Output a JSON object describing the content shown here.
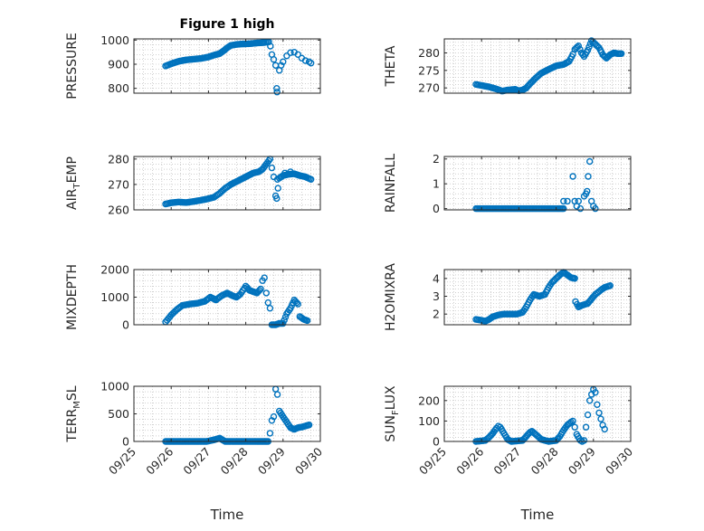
{
  "figure": {
    "title": "Figure 1 high",
    "x_label": "Time"
  },
  "colors": {
    "marker": "#0072bd",
    "axis": "#262626",
    "grid": "#b3b3b3"
  },
  "chart_data": [
    {
      "type": "scatter",
      "ylabel": "PRESSURE",
      "xlim": [
        "09/25",
        "09/30"
      ],
      "ylim": [
        780,
        1005
      ],
      "yticks": [
        800,
        900,
        1000
      ],
      "xticks": [
        "09/25",
        "09/26",
        "09/27",
        "09/28",
        "09/29",
        "09/30"
      ],
      "curve": [
        [
          25.85,
          893
        ],
        [
          26.0,
          902
        ],
        [
          26.2,
          912
        ],
        [
          26.4,
          918
        ],
        [
          26.6,
          921
        ],
        [
          26.8,
          924
        ],
        [
          27.0,
          930
        ],
        [
          27.15,
          938
        ],
        [
          27.3,
          944
        ],
        [
          27.4,
          955
        ],
        [
          27.5,
          968
        ],
        [
          27.6,
          978
        ],
        [
          27.75,
          982
        ],
        [
          27.9,
          984
        ],
        [
          28.1,
          985
        ],
        [
          28.3,
          988
        ],
        [
          28.5,
          990
        ],
        [
          28.62,
          993
        ]
      ],
      "extra": [
        [
          28.66,
          975
        ],
        [
          28.7,
          940
        ],
        [
          28.75,
          920
        ],
        [
          28.8,
          895
        ],
        [
          28.83,
          800
        ],
        [
          28.84,
          785
        ],
        [
          28.9,
          875
        ],
        [
          28.95,
          895
        ],
        [
          29.0,
          910
        ],
        [
          29.1,
          935
        ],
        [
          29.2,
          948
        ],
        [
          29.3,
          950
        ],
        [
          29.4,
          940
        ],
        [
          29.5,
          925
        ],
        [
          29.6,
          915
        ],
        [
          29.7,
          910
        ],
        [
          29.75,
          905
        ]
      ]
    },
    {
      "type": "scatter",
      "ylabel": "THETA",
      "xlim": [
        "09/25",
        "09/30"
      ],
      "ylim": [
        268.5,
        284
      ],
      "yticks": [
        270,
        275,
        280
      ],
      "xticks": [
        "09/25",
        "09/26",
        "09/27",
        "09/28",
        "09/29",
        "09/30"
      ],
      "curve": [
        [
          25.85,
          271
        ],
        [
          26.0,
          270.7
        ],
        [
          26.2,
          270.3
        ],
        [
          26.4,
          269.7
        ],
        [
          26.55,
          269.1
        ],
        [
          26.7,
          269.4
        ],
        [
          26.9,
          269.6
        ],
        [
          27.0,
          269.2
        ],
        [
          27.1,
          269.4
        ],
        [
          27.2,
          270.0
        ],
        [
          27.3,
          271.2
        ],
        [
          27.45,
          272.8
        ],
        [
          27.6,
          274.2
        ],
        [
          27.8,
          275.3
        ],
        [
          28.0,
          276.3
        ],
        [
          28.2,
          276.7
        ],
        [
          28.35,
          277.6
        ],
        [
          28.45,
          279.6
        ],
        [
          28.5,
          281.0
        ],
        [
          28.6,
          282.0
        ],
        [
          28.68,
          280.0
        ],
        [
          28.75,
          279.0
        ],
        [
          28.85,
          280.8
        ],
        [
          28.95,
          283.5
        ],
        [
          29.05,
          282.5
        ],
        [
          29.15,
          281.5
        ],
        [
          29.25,
          279.5
        ],
        [
          29.35,
          278.5
        ],
        [
          29.45,
          279.5
        ],
        [
          29.55,
          280.0
        ],
        [
          29.65,
          279.8
        ],
        [
          29.75,
          279.8
        ]
      ],
      "extra": []
    },
    {
      "type": "scatter",
      "ylabel": "AIR_TEMP",
      "xlim": [
        "09/25",
        "09/30"
      ],
      "ylim": [
        260,
        281
      ],
      "yticks": [
        260,
        270,
        280
      ],
      "xticks": [
        "09/25",
        "09/26",
        "09/27",
        "09/28",
        "09/29",
        "09/30"
      ],
      "curve": [
        [
          25.85,
          262.3
        ],
        [
          26.0,
          262.8
        ],
        [
          26.2,
          263.1
        ],
        [
          26.4,
          262.9
        ],
        [
          26.6,
          263.3
        ],
        [
          26.8,
          263.8
        ],
        [
          27.0,
          264.4
        ],
        [
          27.15,
          265.0
        ],
        [
          27.3,
          266.5
        ],
        [
          27.45,
          268.5
        ],
        [
          27.6,
          270.0
        ],
        [
          27.8,
          271.5
        ],
        [
          28.0,
          273.0
        ],
        [
          28.2,
          274.5
        ],
        [
          28.35,
          275.0
        ],
        [
          28.45,
          276.0
        ],
        [
          28.55,
          278.0
        ],
        [
          28.65,
          280.0
        ],
        [
          28.7,
          276.5
        ],
        [
          28.75,
          273.0
        ],
        [
          28.8,
          265.5
        ],
        [
          28.83,
          264.5
        ],
        [
          28.9,
          272.5
        ],
        [
          29.0,
          273.5
        ],
        [
          29.15,
          274.0
        ],
        [
          29.3,
          274.2
        ],
        [
          29.45,
          273.5
        ],
        [
          29.6,
          273.0
        ],
        [
          29.75,
          272.0
        ]
      ],
      "extra": [
        [
          28.85,
          272.0
        ],
        [
          28.95,
          273.0
        ],
        [
          29.05,
          274.5
        ],
        [
          29.2,
          275.0
        ]
      ]
    },
    {
      "type": "scatter",
      "ylabel": "RAINFALL",
      "xlim": [
        "09/25",
        "09/30"
      ],
      "ylim": [
        -0.05,
        2.1
      ],
      "yticks": [
        0,
        1,
        2
      ],
      "xticks": [
        "09/25",
        "09/26",
        "09/27",
        "09/28",
        "09/29",
        "09/30"
      ],
      "curve": [
        [
          25.85,
          0
        ],
        [
          26.4,
          0
        ],
        [
          26.95,
          0
        ],
        [
          27.5,
          0
        ],
        [
          28.0,
          0
        ],
        [
          28.2,
          0
        ]
      ],
      "extra": [
        [
          28.2,
          0.3
        ],
        [
          28.3,
          0.3
        ],
        [
          28.45,
          1.3
        ],
        [
          28.5,
          0.3
        ],
        [
          28.55,
          0.1
        ],
        [
          28.6,
          0.3
        ],
        [
          28.65,
          0
        ],
        [
          28.75,
          0.5
        ],
        [
          28.8,
          0.6
        ],
        [
          28.83,
          0.7
        ],
        [
          28.86,
          1.3
        ],
        [
          28.9,
          1.9
        ],
        [
          28.95,
          0.3
        ],
        [
          29.0,
          0.1
        ],
        [
          29.05,
          0
        ]
      ]
    },
    {
      "type": "scatter",
      "ylabel": "MIXDEPTH",
      "xlim": [
        "09/25",
        "09/30"
      ],
      "ylim": [
        0,
        2000
      ],
      "yticks": [
        0,
        1000,
        2000
      ],
      "xticks": [
        "09/25",
        "09/26",
        "09/27",
        "09/28",
        "09/29",
        "09/30"
      ],
      "curve": [
        [
          25.85,
          100
        ],
        [
          26.0,
          350
        ],
        [
          26.15,
          550
        ],
        [
          26.3,
          700
        ],
        [
          26.5,
          750
        ],
        [
          26.7,
          780
        ],
        [
          26.9,
          850
        ],
        [
          27.05,
          1000
        ],
        [
          27.2,
          900
        ],
        [
          27.35,
          1050
        ],
        [
          27.5,
          1150
        ],
        [
          27.65,
          1050
        ],
        [
          27.75,
          1000
        ],
        [
          27.85,
          1100
        ],
        [
          28.0,
          1400
        ],
        [
          28.1,
          1250
        ],
        [
          28.2,
          1200
        ],
        [
          28.3,
          1150
        ],
        [
          28.4,
          1300
        ],
        [
          28.45,
          1600
        ],
        [
          28.5,
          1700
        ],
        [
          28.55,
          1150
        ],
        [
          28.6,
          800
        ],
        [
          28.65,
          600
        ],
        [
          28.7,
          0
        ],
        [
          28.8,
          0
        ],
        [
          28.9,
          50
        ],
        [
          29.0,
          50
        ],
        [
          29.1,
          400
        ],
        [
          29.2,
          600
        ],
        [
          29.3,
          900
        ],
        [
          29.4,
          750
        ],
        [
          29.45,
          300
        ],
        [
          29.55,
          200
        ],
        [
          29.65,
          150
        ]
      ],
      "extra": []
    },
    {
      "type": "scatter",
      "ylabel": "H2OMIXRA",
      "xlim": [
        "09/25",
        "09/30"
      ],
      "ylim": [
        1.4,
        4.5
      ],
      "yticks": [
        2,
        3,
        4
      ],
      "xticks": [
        "09/25",
        "09/26",
        "09/27",
        "09/28",
        "09/29",
        "09/30"
      ],
      "curve": [
        [
          25.85,
          1.7
        ],
        [
          26.0,
          1.65
        ],
        [
          26.1,
          1.6
        ],
        [
          26.2,
          1.7
        ],
        [
          26.3,
          1.85
        ],
        [
          26.45,
          1.95
        ],
        [
          26.6,
          2.0
        ],
        [
          26.8,
          2.0
        ],
        [
          26.95,
          2.0
        ],
        [
          27.1,
          2.1
        ],
        [
          27.2,
          2.4
        ],
        [
          27.3,
          2.8
        ],
        [
          27.4,
          3.1
        ],
        [
          27.55,
          3.0
        ],
        [
          27.7,
          3.1
        ],
        [
          27.8,
          3.5
        ],
        [
          27.9,
          3.8
        ],
        [
          28.0,
          4.0
        ],
        [
          28.1,
          4.2
        ],
        [
          28.2,
          4.35
        ],
        [
          28.3,
          4.2
        ],
        [
          28.4,
          4.05
        ],
        [
          28.5,
          4.0
        ],
        [
          28.52,
          2.7
        ],
        [
          28.6,
          2.4
        ],
        [
          28.7,
          2.5
        ],
        [
          28.85,
          2.6
        ],
        [
          28.95,
          2.85
        ],
        [
          29.05,
          3.1
        ],
        [
          29.2,
          3.35
        ],
        [
          29.3,
          3.5
        ],
        [
          29.45,
          3.6
        ]
      ],
      "extra": []
    },
    {
      "type": "scatter",
      "ylabel": "TERR_MSL",
      "xlim": [
        "09/25",
        "09/30"
      ],
      "ylim": [
        0,
        1000
      ],
      "yticks": [
        0,
        500,
        1000
      ],
      "xticks": [
        "09/25",
        "09/26",
        "09/27",
        "09/28",
        "09/29",
        "09/30"
      ],
      "curve": [
        [
          25.85,
          0
        ],
        [
          26.4,
          0
        ],
        [
          26.95,
          0
        ],
        [
          27.15,
          30
        ],
        [
          27.3,
          60
        ],
        [
          27.45,
          0
        ],
        [
          27.9,
          0
        ],
        [
          28.3,
          0
        ],
        [
          28.6,
          0
        ],
        [
          28.65,
          150
        ],
        [
          28.7,
          380
        ],
        [
          28.75,
          450
        ],
        [
          28.8,
          950
        ],
        [
          28.85,
          850
        ],
        [
          28.9,
          550
        ],
        [
          29.0,
          450
        ],
        [
          29.1,
          350
        ],
        [
          29.2,
          250
        ],
        [
          29.3,
          220
        ],
        [
          29.4,
          250
        ],
        [
          29.5,
          260
        ],
        [
          29.6,
          280
        ],
        [
          29.7,
          300
        ]
      ],
      "extra": []
    },
    {
      "type": "scatter",
      "ylabel": "SUN_FLUX",
      "xlim": [
        "09/25",
        "09/30"
      ],
      "ylim": [
        0,
        270
      ],
      "yticks": [
        0,
        100,
        200
      ],
      "xticks": [
        "09/25",
        "09/26",
        "09/27",
        "09/28",
        "09/29",
        "09/30"
      ],
      "curve": [
        [
          25.85,
          0
        ],
        [
          26.1,
          5
        ],
        [
          26.2,
          20
        ],
        [
          26.3,
          40
        ],
        [
          26.4,
          65
        ],
        [
          26.45,
          75
        ],
        [
          26.5,
          70
        ],
        [
          26.6,
          40
        ],
        [
          26.7,
          10
        ],
        [
          26.8,
          0
        ],
        [
          27.1,
          5
        ],
        [
          27.2,
          25
        ],
        [
          27.3,
          45
        ],
        [
          27.35,
          50
        ],
        [
          27.45,
          35
        ],
        [
          27.6,
          10
        ],
        [
          27.8,
          0
        ],
        [
          28.0,
          5
        ],
        [
          28.1,
          25
        ],
        [
          28.2,
          55
        ],
        [
          28.3,
          80
        ],
        [
          28.4,
          95
        ],
        [
          28.45,
          100
        ],
        [
          28.5,
          70
        ],
        [
          28.55,
          35
        ],
        [
          28.65,
          5
        ],
        [
          28.7,
          0
        ],
        [
          28.75,
          5
        ],
        [
          28.8,
          70
        ],
        [
          28.85,
          130
        ],
        [
          28.9,
          200
        ],
        [
          28.95,
          230
        ],
        [
          29.0,
          255
        ],
        [
          29.05,
          240
        ],
        [
          29.1,
          180
        ],
        [
          29.15,
          140
        ],
        [
          29.2,
          110
        ],
        [
          29.25,
          80
        ],
        [
          29.3,
          60
        ]
      ],
      "extra": []
    }
  ]
}
